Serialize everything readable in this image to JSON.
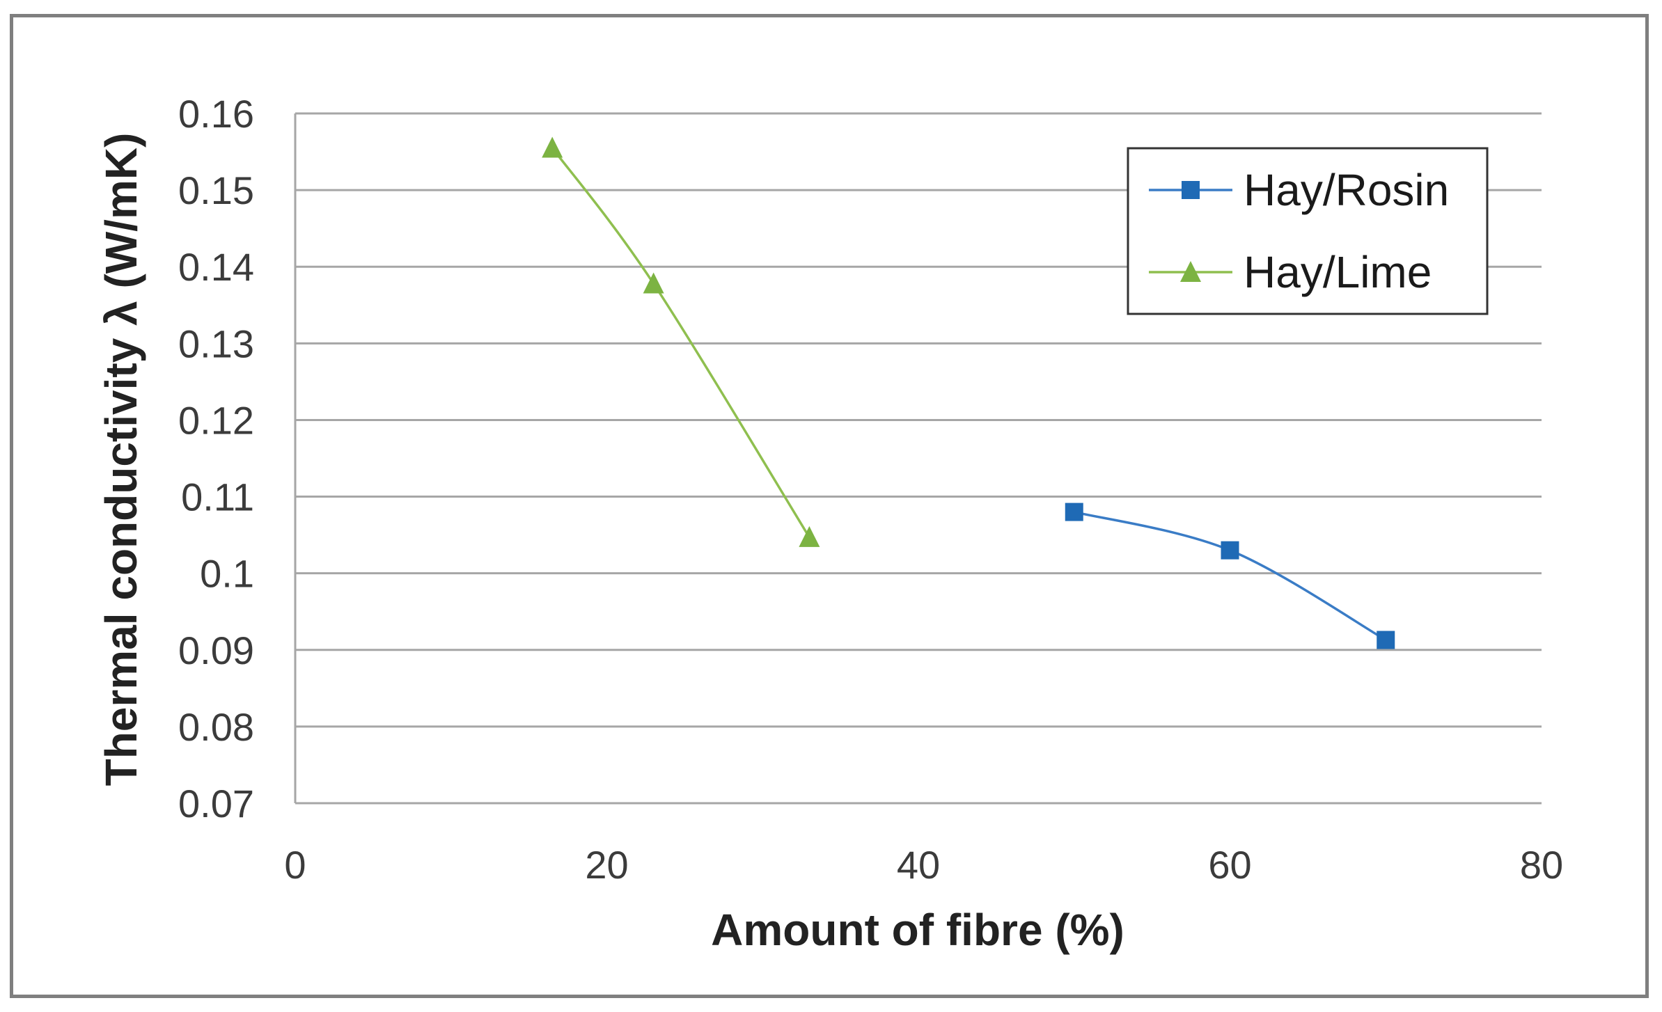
{
  "chart_data": {
    "type": "line",
    "xlabel": "Amount of fibre (%)",
    "ylabel": "Thermal conductivity λ (W/mK)",
    "xlim": [
      0,
      80
    ],
    "ylim": [
      0.07,
      0.16
    ],
    "xticks": [
      0,
      20,
      40,
      60,
      80
    ],
    "xtick_labels": [
      "0",
      "20",
      "40",
      "60",
      "80"
    ],
    "yticks": [
      0.07,
      0.08,
      0.09,
      0.1,
      0.11,
      0.12,
      0.13,
      0.14,
      0.15,
      0.16
    ],
    "ytick_labels": [
      "0.07",
      "0.08",
      "0.09",
      "0.1",
      "0.11",
      "0.12",
      "0.13",
      "0.14",
      "0.15",
      "0.16"
    ],
    "grid": "horizontal",
    "legend_position": "top-right",
    "series": [
      {
        "name": "Hay/Rosin",
        "color": "#3a7cc6",
        "marker_color": "#1f6ab5",
        "marker": "square",
        "x": [
          50,
          60,
          70
        ],
        "y": [
          0.108,
          0.103,
          0.0913
        ]
      },
      {
        "name": "Hay/Lime",
        "color": "#8fbf4f",
        "marker_color": "#7cb342",
        "marker": "triangle",
        "x": [
          16.5,
          23,
          33
        ],
        "y": [
          0.1555,
          0.1378,
          0.1047
        ]
      }
    ]
  }
}
